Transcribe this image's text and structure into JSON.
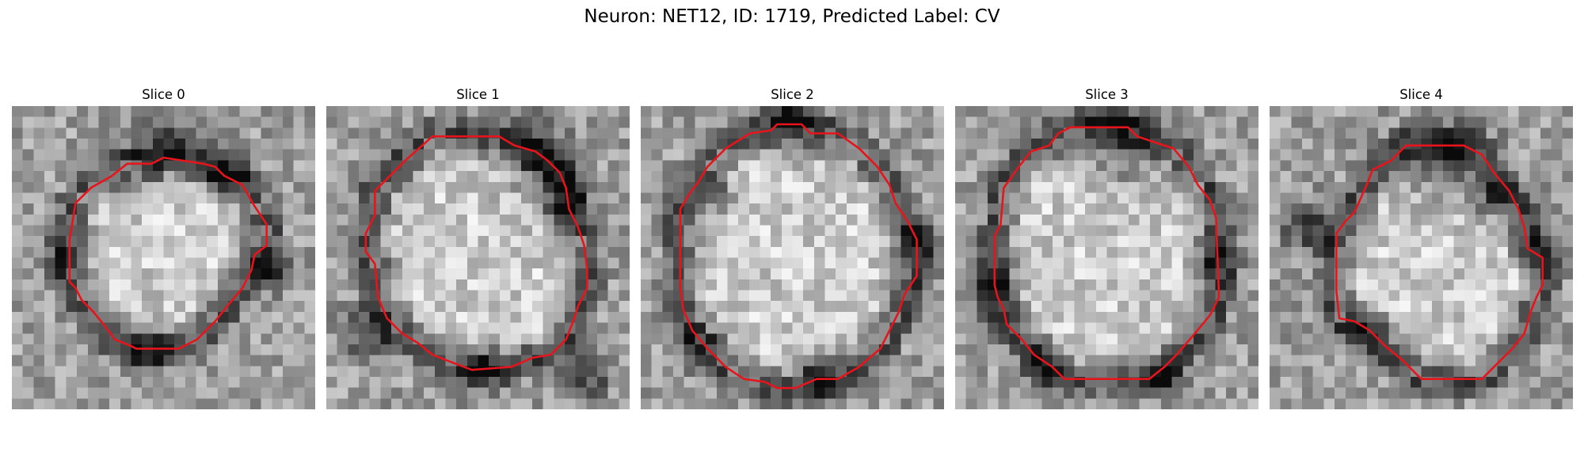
{
  "figure": {
    "title": "Neuron: NET12, ID: 1719, Predicted Label: CV",
    "contour_color": "#e8141c"
  },
  "panels": [
    {
      "title": "Slice 0",
      "contour": [
        [
          0.46,
          0.19
        ],
        [
          0.38,
          0.19
        ],
        [
          0.33,
          0.23
        ],
        [
          0.26,
          0.27
        ],
        [
          0.21,
          0.32
        ],
        [
          0.2,
          0.38
        ],
        [
          0.19,
          0.44
        ],
        [
          0.19,
          0.58
        ],
        [
          0.21,
          0.6
        ],
        [
          0.23,
          0.64
        ],
        [
          0.27,
          0.68
        ],
        [
          0.31,
          0.73
        ],
        [
          0.34,
          0.77
        ],
        [
          0.39,
          0.79
        ],
        [
          0.41,
          0.8
        ],
        [
          0.55,
          0.8
        ],
        [
          0.61,
          0.77
        ],
        [
          0.67,
          0.71
        ],
        [
          0.71,
          0.66
        ],
        [
          0.76,
          0.6
        ],
        [
          0.79,
          0.54
        ],
        [
          0.8,
          0.49
        ],
        [
          0.84,
          0.46
        ],
        [
          0.84,
          0.39
        ],
        [
          0.8,
          0.33
        ],
        [
          0.76,
          0.26
        ],
        [
          0.7,
          0.23
        ],
        [
          0.67,
          0.2
        ],
        [
          0.63,
          0.19
        ],
        [
          0.5,
          0.17
        ]
      ],
      "dark_spots": [
        [
          0.5,
          0.12,
          0.1
        ],
        [
          0.45,
          0.78,
          0.08
        ],
        [
          0.18,
          0.5,
          0.07
        ],
        [
          0.86,
          0.55,
          0.06
        ],
        [
          0.7,
          0.22,
          0.08
        ]
      ],
      "seed": 11
    },
    {
      "title": "Slice 1",
      "contour": [
        [
          0.35,
          0.1
        ],
        [
          0.57,
          0.1
        ],
        [
          0.62,
          0.13
        ],
        [
          0.69,
          0.15
        ],
        [
          0.73,
          0.18
        ],
        [
          0.77,
          0.22
        ],
        [
          0.79,
          0.27
        ],
        [
          0.8,
          0.34
        ],
        [
          0.83,
          0.4
        ],
        [
          0.85,
          0.46
        ],
        [
          0.86,
          0.54
        ],
        [
          0.86,
          0.6
        ],
        [
          0.83,
          0.66
        ],
        [
          0.81,
          0.72
        ],
        [
          0.79,
          0.77
        ],
        [
          0.74,
          0.82
        ],
        [
          0.68,
          0.83
        ],
        [
          0.61,
          0.86
        ],
        [
          0.48,
          0.87
        ],
        [
          0.4,
          0.84
        ],
        [
          0.35,
          0.82
        ],
        [
          0.3,
          0.78
        ],
        [
          0.25,
          0.75
        ],
        [
          0.2,
          0.7
        ],
        [
          0.17,
          0.63
        ],
        [
          0.16,
          0.52
        ],
        [
          0.13,
          0.48
        ],
        [
          0.13,
          0.42
        ],
        [
          0.16,
          0.36
        ],
        [
          0.16,
          0.28
        ],
        [
          0.21,
          0.23
        ],
        [
          0.26,
          0.18
        ]
      ],
      "dark_spots": [
        [
          0.68,
          0.16,
          0.12
        ],
        [
          0.78,
          0.3,
          0.09
        ],
        [
          0.14,
          0.75,
          0.08
        ],
        [
          0.5,
          0.86,
          0.08
        ],
        [
          0.86,
          0.9,
          0.07
        ]
      ],
      "seed": 23
    },
    {
      "title": "Slice 2",
      "contour": [
        [
          0.36,
          0.09
        ],
        [
          0.43,
          0.08
        ],
        [
          0.45,
          0.06
        ],
        [
          0.53,
          0.06
        ],
        [
          0.56,
          0.09
        ],
        [
          0.65,
          0.09
        ],
        [
          0.72,
          0.14
        ],
        [
          0.78,
          0.2
        ],
        [
          0.82,
          0.26
        ],
        [
          0.84,
          0.32
        ],
        [
          0.88,
          0.38
        ],
        [
          0.91,
          0.44
        ],
        [
          0.91,
          0.56
        ],
        [
          0.87,
          0.62
        ],
        [
          0.85,
          0.68
        ],
        [
          0.82,
          0.74
        ],
        [
          0.79,
          0.8
        ],
        [
          0.72,
          0.86
        ],
        [
          0.65,
          0.9
        ],
        [
          0.58,
          0.9
        ],
        [
          0.51,
          0.93
        ],
        [
          0.45,
          0.93
        ],
        [
          0.41,
          0.91
        ],
        [
          0.34,
          0.9
        ],
        [
          0.28,
          0.86
        ],
        [
          0.22,
          0.8
        ],
        [
          0.17,
          0.74
        ],
        [
          0.14,
          0.67
        ],
        [
          0.13,
          0.6
        ],
        [
          0.13,
          0.34
        ],
        [
          0.16,
          0.29
        ],
        [
          0.19,
          0.25
        ],
        [
          0.22,
          0.2
        ],
        [
          0.28,
          0.14
        ]
      ],
      "dark_spots": [
        [
          0.5,
          0.07,
          0.09
        ],
        [
          0.9,
          0.45,
          0.08
        ],
        [
          0.2,
          0.8,
          0.07
        ],
        [
          0.6,
          0.9,
          0.08
        ],
        [
          0.25,
          0.3,
          0.06
        ]
      ],
      "seed": 37
    },
    {
      "title": "Slice 3",
      "contour": [
        [
          0.38,
          0.07
        ],
        [
          0.57,
          0.07
        ],
        [
          0.6,
          0.1
        ],
        [
          0.66,
          0.12
        ],
        [
          0.72,
          0.14
        ],
        [
          0.77,
          0.2
        ],
        [
          0.8,
          0.26
        ],
        [
          0.84,
          0.31
        ],
        [
          0.86,
          0.37
        ],
        [
          0.87,
          0.63
        ],
        [
          0.84,
          0.69
        ],
        [
          0.79,
          0.75
        ],
        [
          0.73,
          0.82
        ],
        [
          0.69,
          0.86
        ],
        [
          0.64,
          0.9
        ],
        [
          0.36,
          0.9
        ],
        [
          0.32,
          0.86
        ],
        [
          0.26,
          0.82
        ],
        [
          0.22,
          0.77
        ],
        [
          0.17,
          0.72
        ],
        [
          0.16,
          0.67
        ],
        [
          0.14,
          0.63
        ],
        [
          0.13,
          0.59
        ],
        [
          0.13,
          0.43
        ],
        [
          0.15,
          0.39
        ],
        [
          0.16,
          0.27
        ],
        [
          0.21,
          0.2
        ],
        [
          0.25,
          0.15
        ],
        [
          0.31,
          0.13
        ],
        [
          0.34,
          0.09
        ]
      ],
      "dark_spots": [
        [
          0.55,
          0.14,
          0.12
        ],
        [
          0.86,
          0.5,
          0.07
        ],
        [
          0.12,
          0.6,
          0.09
        ],
        [
          0.3,
          0.85,
          0.07
        ],
        [
          0.7,
          0.88,
          0.06
        ]
      ],
      "seed": 53
    },
    {
      "title": "Slice 4",
      "contour": [
        [
          0.45,
          0.13
        ],
        [
          0.64,
          0.13
        ],
        [
          0.7,
          0.16
        ],
        [
          0.74,
          0.22
        ],
        [
          0.79,
          0.28
        ],
        [
          0.82,
          0.34
        ],
        [
          0.84,
          0.4
        ],
        [
          0.85,
          0.47
        ],
        [
          0.9,
          0.5
        ],
        [
          0.9,
          0.59
        ],
        [
          0.88,
          0.63
        ],
        [
          0.86,
          0.68
        ],
        [
          0.84,
          0.75
        ],
        [
          0.8,
          0.8
        ],
        [
          0.76,
          0.84
        ],
        [
          0.7,
          0.9
        ],
        [
          0.5,
          0.9
        ],
        [
          0.44,
          0.84
        ],
        [
          0.38,
          0.79
        ],
        [
          0.33,
          0.74
        ],
        [
          0.28,
          0.71
        ],
        [
          0.23,
          0.7
        ],
        [
          0.22,
          0.61
        ],
        [
          0.22,
          0.42
        ],
        [
          0.25,
          0.38
        ],
        [
          0.28,
          0.35
        ],
        [
          0.32,
          0.26
        ],
        [
          0.34,
          0.21
        ],
        [
          0.4,
          0.18
        ]
      ],
      "dark_spots": [
        [
          0.58,
          0.18,
          0.14
        ],
        [
          0.88,
          0.45,
          0.07
        ],
        [
          0.12,
          0.4,
          0.08
        ],
        [
          0.3,
          0.75,
          0.07
        ],
        [
          0.72,
          0.3,
          0.07
        ]
      ],
      "seed": 71
    }
  ]
}
